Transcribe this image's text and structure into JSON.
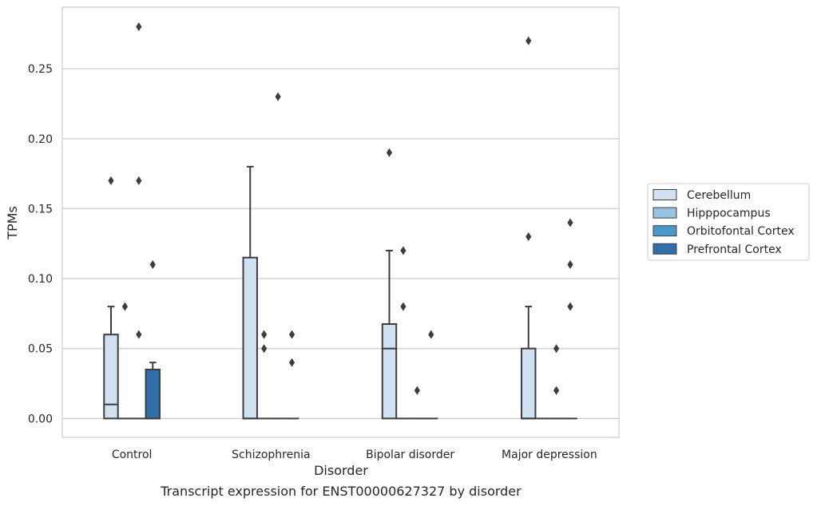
{
  "chart_data": {
    "type": "box",
    "xlabel": "Disorder",
    "ylabel": "TPMs",
    "ylim": [
      -0.0135,
      0.294
    ],
    "yticks": [
      "0.00",
      "0.05",
      "0.10",
      "0.15",
      "0.20",
      "0.25"
    ],
    "categories": [
      "Control",
      "Schizophrenia",
      "Bipolar disorder",
      "Major depression"
    ],
    "grid": true,
    "legend_placement": "right, outside",
    "series": [
      {
        "name": "Cerebellum",
        "color": "#d0e1f2",
        "boxes": [
          {
            "q1": 0.0,
            "median": 0.01,
            "q3": 0.06,
            "whisker_low": 0.0,
            "whisker_high": 0.08,
            "outliers": [
              0.17
            ]
          },
          {
            "q1": 0.0,
            "median": 0.0,
            "q3": 0.115,
            "whisker_low": 0.0,
            "whisker_high": 0.18,
            "outliers": []
          },
          {
            "q1": 0.0,
            "median": 0.05,
            "q3": 0.0675,
            "whisker_low": 0.0,
            "whisker_high": 0.12,
            "outliers": [
              0.19
            ]
          },
          {
            "q1": 0.0,
            "median": 0.0,
            "q3": 0.05,
            "whisker_low": 0.0,
            "whisker_high": 0.08,
            "outliers": [
              0.13,
              0.27
            ]
          }
        ]
      },
      {
        "name": "Hipppocampus",
        "color": "#94c4df",
        "boxes": [
          {
            "q1": 0.0,
            "median": 0.0,
            "q3": 0.0,
            "whisker_low": 0.0,
            "whisker_high": 0.0,
            "outliers": [
              0.08
            ]
          },
          {
            "q1": 0.0,
            "median": 0.0,
            "q3": 0.0,
            "whisker_low": 0.0,
            "whisker_high": 0.0,
            "outliers": [
              0.05,
              0.06
            ]
          },
          {
            "q1": 0.0,
            "median": 0.0,
            "q3": 0.0,
            "whisker_low": 0.0,
            "whisker_high": 0.0,
            "outliers": [
              0.08,
              0.12
            ]
          },
          {
            "q1": 0.0,
            "median": 0.0,
            "q3": 0.0,
            "whisker_low": 0.0,
            "whisker_high": 0.0,
            "outliers": []
          }
        ]
      },
      {
        "name": "Orbitofontal Cortex",
        "color": "#4a98c9",
        "boxes": [
          {
            "q1": 0.0,
            "median": 0.0,
            "q3": 0.0,
            "whisker_low": 0.0,
            "whisker_high": 0.0,
            "outliers": [
              0.06,
              0.17,
              0.28
            ]
          },
          {
            "q1": 0.0,
            "median": 0.0,
            "q3": 0.0,
            "whisker_low": 0.0,
            "whisker_high": 0.0,
            "outliers": [
              0.23
            ]
          },
          {
            "q1": 0.0,
            "median": 0.0,
            "q3": 0.0,
            "whisker_low": 0.0,
            "whisker_high": 0.0,
            "outliers": [
              0.02
            ]
          },
          {
            "q1": 0.0,
            "median": 0.0,
            "q3": 0.0,
            "whisker_low": 0.0,
            "whisker_high": 0.0,
            "outliers": [
              0.02,
              0.05
            ]
          }
        ]
      },
      {
        "name": "Prefrontal Cortex",
        "color": "#2e6fac",
        "boxes": [
          {
            "q1": 0.0,
            "median": 0.0,
            "q3": 0.035,
            "whisker_low": 0.0,
            "whisker_high": 0.04,
            "outliers": [
              0.11
            ]
          },
          {
            "q1": 0.0,
            "median": 0.0,
            "q3": 0.0,
            "whisker_low": 0.0,
            "whisker_high": 0.0,
            "outliers": [
              0.04,
              0.06
            ]
          },
          {
            "q1": 0.0,
            "median": 0.0,
            "q3": 0.0,
            "whisker_low": 0.0,
            "whisker_high": 0.0,
            "outliers": [
              0.06
            ]
          },
          {
            "q1": 0.0,
            "median": 0.0,
            "q3": 0.0,
            "whisker_low": 0.0,
            "whisker_high": 0.0,
            "outliers": [
              0.08,
              0.11,
              0.14
            ]
          }
        ]
      }
    ],
    "caption": "Transcript expression for ENST00000627327 by disorder"
  }
}
